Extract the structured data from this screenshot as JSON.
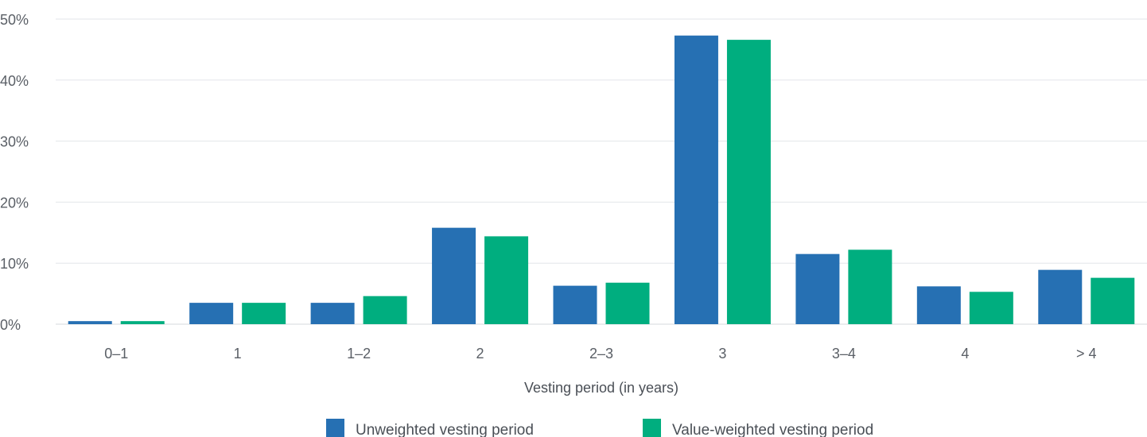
{
  "chart_data": {
    "type": "bar",
    "xlabel": "Vesting period (in years)",
    "ylabel": "",
    "ylim": [
      0,
      50
    ],
    "y_ticks": [
      "0%",
      "10%",
      "20%",
      "30%",
      "40%",
      "50%"
    ],
    "grid": true,
    "legend_position": "bottom-center",
    "categories": [
      "0–1",
      "1",
      "1–2",
      "2",
      "2–3",
      "3",
      "3–4",
      "4",
      "> 4"
    ],
    "series": [
      {
        "name": "Unweighted vesting period",
        "color": "#2670b3",
        "values": [
          0.5,
          3.5,
          3.5,
          15.8,
          6.3,
          47.3,
          11.5,
          6.2,
          8.9
        ]
      },
      {
        "name": "Value-weighted vesting period",
        "color": "#00ae7f",
        "values": [
          0.5,
          3.5,
          4.6,
          14.4,
          6.8,
          46.6,
          12.2,
          5.3,
          7.6
        ]
      }
    ]
  }
}
